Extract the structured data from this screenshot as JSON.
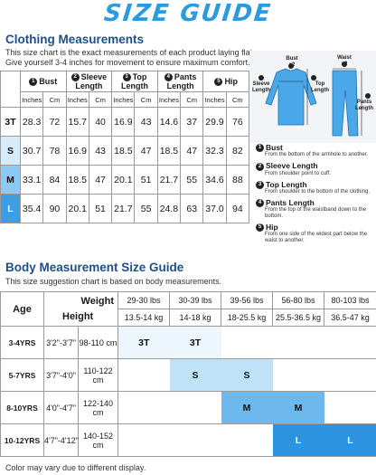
{
  "title": "SIZE GUIDE",
  "clothing": {
    "heading": "Clothing Measurements",
    "desc1": "This size chart is the exact measurements of each product laying flat.",
    "desc2": "Give yourself 3-4 inches for movement to ensure maximum comfort.",
    "columns": [
      {
        "num": "1",
        "label": "Bust"
      },
      {
        "num": "2",
        "label": "Sleeve Length"
      },
      {
        "num": "3",
        "label": "Top Length"
      },
      {
        "num": "4",
        "label": "Pants Length"
      },
      {
        "num": "5",
        "label": "Hip"
      }
    ],
    "unit_inches": "Inches",
    "unit_cm": "Cm",
    "rows": [
      {
        "size": "3T",
        "values": [
          "28.3",
          "72",
          "15.7",
          "40",
          "16.9",
          "43",
          "14.6",
          "37",
          "29.9",
          "76"
        ]
      },
      {
        "size": "S",
        "values": [
          "30.7",
          "78",
          "16.9",
          "43",
          "18.5",
          "47",
          "18.5",
          "47",
          "32.3",
          "82"
        ]
      },
      {
        "size": "M",
        "values": [
          "33.1",
          "84",
          "18.5",
          "47",
          "20.1",
          "51",
          "21.7",
          "55",
          "34.6",
          "88"
        ]
      },
      {
        "size": "L",
        "values": [
          "35.4",
          "90",
          "20.1",
          "51",
          "21.7",
          "55",
          "24.8",
          "63",
          "37.0",
          "94"
        ]
      }
    ]
  },
  "figure_labels": {
    "bust": "Bust\nx2",
    "waist": "Waist\nx2",
    "sleeve": "Sleeve\nLength",
    "top": "Top\nLength",
    "pants": "Pants\nLength"
  },
  "legend": [
    {
      "num": "1",
      "title": "Bust",
      "desc": "From the bottom of the armhole to another."
    },
    {
      "num": "2",
      "title": "Sleeve Length",
      "desc": "From shoulder point to cuff."
    },
    {
      "num": "3",
      "title": "Top Length",
      "desc": "From shoulder to the bottom of the clothing."
    },
    {
      "num": "4",
      "title": "Pants Length",
      "desc": "From the top of the waistband down to the bottom."
    },
    {
      "num": "5",
      "title": "Hip",
      "desc": "From one side of the widest part below the waist to another."
    }
  ],
  "body": {
    "heading": "Body Measurement Size Guide",
    "desc": "This size suggestion chart is based on body measurements.",
    "age_label": "Age",
    "weight_label": "Weight",
    "height_label": "Height",
    "weights": [
      {
        "lbs": "29-30 lbs",
        "kg": "13.5-14 kg"
      },
      {
        "lbs": "30-39 lbs",
        "kg": "14-18 kg"
      },
      {
        "lbs": "39-56 lbs",
        "kg": "18-25.5 kg"
      },
      {
        "lbs": "56-80 lbs",
        "kg": "25.5-36.5 kg"
      },
      {
        "lbs": "80-103 lbs",
        "kg": "36.5-47 kg"
      }
    ],
    "rows": [
      {
        "age": "3-4YRS",
        "height_in": "3'2\"-3'7\"",
        "height_cm": "98-110 cm",
        "fits": [
          "3T",
          "3T",
          "",
          "",
          ""
        ]
      },
      {
        "age": "5-7YRS",
        "height_in": "3'7\"-4'0\"",
        "height_cm": "110-122 cm",
        "fits": [
          "",
          "S",
          "S",
          "",
          ""
        ]
      },
      {
        "age": "8-10YRS",
        "height_in": "4'0\"-4'7\"",
        "height_cm": "122-140 cm",
        "fits": [
          "",
          "",
          "M",
          "M",
          ""
        ]
      },
      {
        "age": "10-12YRS",
        "height_in": "4'7\"-4'12\"",
        "height_cm": "140-152 cm",
        "fits": [
          "",
          "",
          "",
          "L",
          "L"
        ]
      }
    ]
  },
  "footer": "Color may vary due to different display.",
  "colors": {
    "title": "#2a9be0",
    "heading": "#1f4f8a",
    "size_s": "#d6ecfb",
    "size_m": "#8ccaf2",
    "size_l": "#3d9ee4",
    "figure": "#4aa8e8"
  }
}
